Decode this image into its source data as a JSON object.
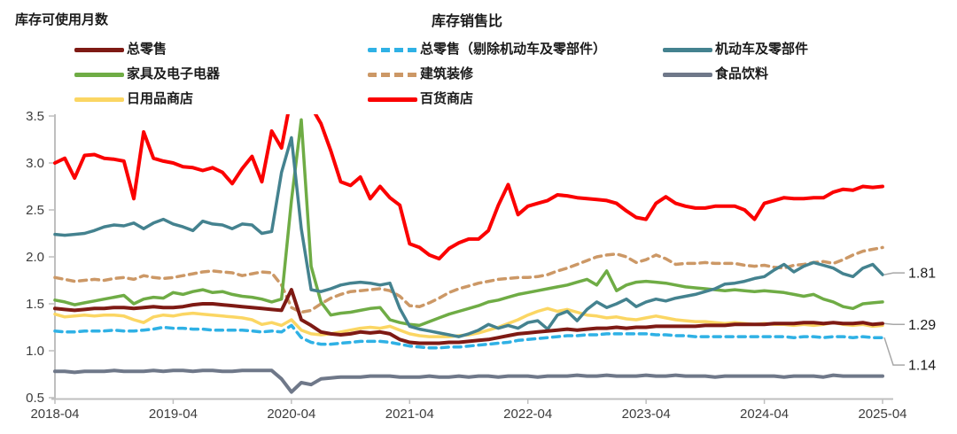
{
  "chart": {
    "unit_note": "库存可使用月数",
    "title": "库存销售比",
    "y_ticks": [
      "3.5",
      "3.0",
      "2.5",
      "2.0",
      "1.5",
      "1.0",
      "0.5"
    ],
    "x_ticks": [
      "2018-04",
      "2019-04",
      "2020-04",
      "2021-04",
      "2022-04",
      "2023-04",
      "2024-04",
      "2025-04"
    ],
    "end_labels": [
      {
        "text": "1.81",
        "series_index": 2,
        "dy": -2
      },
      {
        "text": "1.29",
        "series_index": 0,
        "dy": 1
      },
      {
        "text": "1.14",
        "series_index": 1,
        "dy": 31
      }
    ]
  },
  "chart_data": {
    "type": "line",
    "title": "库存销售比",
    "ylabel": "库存可使用月数",
    "x_start": "2018-04",
    "x_end": "2025-04",
    "frequency": "monthly",
    "ylim": [
      0.5,
      3.5
    ],
    "grid": false,
    "axis_color": "#BFBFBF",
    "tick_label_color": "#3D3D3D",
    "leader_color": "#A8A8A8",
    "end_label_color": "#1a1a1a",
    "draw_order": [
      5,
      1,
      4,
      6,
      3,
      2,
      0,
      7
    ],
    "series": [
      {
        "name": "总零售",
        "color": "#7E1A14",
        "dash": "solid",
        "width": 4,
        "values": [
          1.45,
          1.44,
          1.43,
          1.44,
          1.45,
          1.45,
          1.46,
          1.46,
          1.45,
          1.46,
          1.47,
          1.46,
          1.46,
          1.47,
          1.49,
          1.5,
          1.5,
          1.49,
          1.48,
          1.47,
          1.46,
          1.45,
          1.44,
          1.43,
          1.65,
          1.33,
          1.27,
          1.2,
          1.18,
          1.17,
          1.18,
          1.2,
          1.19,
          1.2,
          1.18,
          1.12,
          1.09,
          1.08,
          1.08,
          1.08,
          1.09,
          1.09,
          1.1,
          1.11,
          1.12,
          1.14,
          1.16,
          1.18,
          1.19,
          1.2,
          1.21,
          1.22,
          1.23,
          1.22,
          1.23,
          1.24,
          1.24,
          1.25,
          1.24,
          1.25,
          1.25,
          1.26,
          1.26,
          1.26,
          1.26,
          1.26,
          1.27,
          1.27,
          1.27,
          1.28,
          1.28,
          1.28,
          1.28,
          1.29,
          1.29,
          1.29,
          1.3,
          1.3,
          1.29,
          1.3,
          1.29,
          1.29,
          1.3,
          1.28,
          1.29
        ]
      },
      {
        "name": "总零售（剔除机动车及零部件）",
        "color": "#2FB1E5",
        "dash": "dashed",
        "width": 3.5,
        "values": [
          1.21,
          1.2,
          1.2,
          1.21,
          1.21,
          1.21,
          1.22,
          1.21,
          1.21,
          1.22,
          1.23,
          1.25,
          1.24,
          1.24,
          1.23,
          1.23,
          1.22,
          1.22,
          1.22,
          1.22,
          1.21,
          1.2,
          1.21,
          1.2,
          1.27,
          1.14,
          1.09,
          1.07,
          1.07,
          1.08,
          1.09,
          1.1,
          1.1,
          1.1,
          1.09,
          1.07,
          1.05,
          1.04,
          1.03,
          1.03,
          1.04,
          1.04,
          1.05,
          1.06,
          1.07,
          1.08,
          1.09,
          1.11,
          1.12,
          1.13,
          1.14,
          1.15,
          1.16,
          1.16,
          1.17,
          1.17,
          1.18,
          1.18,
          1.18,
          1.18,
          1.18,
          1.17,
          1.17,
          1.16,
          1.16,
          1.15,
          1.15,
          1.15,
          1.15,
          1.15,
          1.15,
          1.15,
          1.15,
          1.15,
          1.15,
          1.14,
          1.15,
          1.15,
          1.14,
          1.15,
          1.15,
          1.14,
          1.15,
          1.14,
          1.14
        ]
      },
      {
        "name": "机动车及零部件",
        "color": "#44828F",
        "dash": "solid",
        "width": 3.5,
        "values": [
          2.24,
          2.23,
          2.24,
          2.25,
          2.28,
          2.32,
          2.34,
          2.33,
          2.36,
          2.3,
          2.36,
          2.4,
          2.35,
          2.32,
          2.28,
          2.38,
          2.35,
          2.34,
          2.3,
          2.35,
          2.34,
          2.25,
          2.27,
          2.9,
          3.27,
          2.3,
          1.65,
          1.63,
          1.66,
          1.7,
          1.72,
          1.73,
          1.72,
          1.7,
          1.72,
          1.45,
          1.26,
          1.23,
          1.21,
          1.19,
          1.17,
          1.15,
          1.18,
          1.22,
          1.28,
          1.24,
          1.27,
          1.24,
          1.3,
          1.32,
          1.23,
          1.38,
          1.42,
          1.32,
          1.44,
          1.52,
          1.46,
          1.5,
          1.55,
          1.47,
          1.52,
          1.55,
          1.53,
          1.56,
          1.58,
          1.6,
          1.63,
          1.66,
          1.71,
          1.72,
          1.74,
          1.77,
          1.79,
          1.86,
          1.92,
          1.84,
          1.9,
          1.94,
          1.91,
          1.88,
          1.82,
          1.79,
          1.88,
          1.92,
          1.81
        ]
      },
      {
        "name": "家具及电子电器",
        "color": "#6FAC45",
        "dash": "solid",
        "width": 3.5,
        "values": [
          1.54,
          1.52,
          1.49,
          1.51,
          1.53,
          1.55,
          1.57,
          1.59,
          1.5,
          1.55,
          1.57,
          1.56,
          1.62,
          1.6,
          1.63,
          1.65,
          1.62,
          1.63,
          1.6,
          1.58,
          1.57,
          1.55,
          1.52,
          1.55,
          2.6,
          3.46,
          1.9,
          1.52,
          1.38,
          1.4,
          1.41,
          1.43,
          1.45,
          1.46,
          1.33,
          1.3,
          1.28,
          1.27,
          1.31,
          1.35,
          1.39,
          1.42,
          1.45,
          1.48,
          1.52,
          1.54,
          1.57,
          1.6,
          1.62,
          1.64,
          1.66,
          1.68,
          1.7,
          1.73,
          1.76,
          1.7,
          1.85,
          1.64,
          1.7,
          1.73,
          1.74,
          1.73,
          1.72,
          1.7,
          1.68,
          1.67,
          1.66,
          1.65,
          1.64,
          1.65,
          1.64,
          1.63,
          1.64,
          1.63,
          1.62,
          1.6,
          1.58,
          1.6,
          1.55,
          1.52,
          1.47,
          1.45,
          1.5,
          1.51,
          1.52
        ]
      },
      {
        "name": "建筑装修",
        "color": "#CC9866",
        "dash": "dashed",
        "width": 3.5,
        "values": [
          1.78,
          1.76,
          1.74,
          1.75,
          1.76,
          1.75,
          1.77,
          1.78,
          1.76,
          1.8,
          1.78,
          1.77,
          1.78,
          1.8,
          1.82,
          1.84,
          1.85,
          1.84,
          1.83,
          1.8,
          1.82,
          1.84,
          1.83,
          1.7,
          1.46,
          1.41,
          1.43,
          1.5,
          1.56,
          1.6,
          1.63,
          1.64,
          1.65,
          1.66,
          1.64,
          1.58,
          1.48,
          1.47,
          1.51,
          1.56,
          1.62,
          1.66,
          1.69,
          1.72,
          1.74,
          1.76,
          1.77,
          1.78,
          1.78,
          1.79,
          1.81,
          1.85,
          1.88,
          1.92,
          1.96,
          2.0,
          2.02,
          2.03,
          2.0,
          1.94,
          1.97,
          2.02,
          1.98,
          1.92,
          1.93,
          1.93,
          1.94,
          1.93,
          1.93,
          1.93,
          1.91,
          1.9,
          1.91,
          1.89,
          1.88,
          1.91,
          1.92,
          1.94,
          1.95,
          1.93,
          1.97,
          2.02,
          2.06,
          2.08,
          2.1
        ]
      },
      {
        "name": "食品饮料",
        "color": "#6F7889",
        "dash": "solid",
        "width": 4,
        "values": [
          0.78,
          0.78,
          0.77,
          0.78,
          0.78,
          0.78,
          0.79,
          0.78,
          0.78,
          0.78,
          0.79,
          0.78,
          0.79,
          0.79,
          0.78,
          0.79,
          0.79,
          0.78,
          0.78,
          0.79,
          0.79,
          0.79,
          0.79,
          0.7,
          0.56,
          0.66,
          0.64,
          0.7,
          0.71,
          0.72,
          0.72,
          0.72,
          0.73,
          0.73,
          0.73,
          0.72,
          0.72,
          0.72,
          0.73,
          0.72,
          0.72,
          0.73,
          0.72,
          0.73,
          0.73,
          0.72,
          0.73,
          0.73,
          0.73,
          0.72,
          0.73,
          0.73,
          0.73,
          0.74,
          0.73,
          0.73,
          0.74,
          0.73,
          0.73,
          0.73,
          0.74,
          0.73,
          0.73,
          0.74,
          0.73,
          0.73,
          0.73,
          0.72,
          0.73,
          0.73,
          0.73,
          0.73,
          0.73,
          0.73,
          0.72,
          0.73,
          0.73,
          0.73,
          0.72,
          0.74,
          0.73,
          0.73,
          0.73,
          0.73,
          0.73
        ]
      },
      {
        "name": "日用品商店",
        "color": "#FBD663",
        "dash": "solid",
        "width": 3.5,
        "values": [
          1.39,
          1.36,
          1.37,
          1.38,
          1.37,
          1.38,
          1.38,
          1.37,
          1.33,
          1.3,
          1.36,
          1.38,
          1.37,
          1.39,
          1.4,
          1.39,
          1.38,
          1.37,
          1.36,
          1.35,
          1.33,
          1.28,
          1.3,
          1.27,
          1.33,
          1.22,
          1.18,
          1.17,
          1.18,
          1.2,
          1.22,
          1.24,
          1.25,
          1.24,
          1.26,
          1.22,
          1.18,
          1.16,
          1.15,
          1.15,
          1.15,
          1.16,
          1.17,
          1.19,
          1.22,
          1.25,
          1.29,
          1.33,
          1.38,
          1.42,
          1.45,
          1.42,
          1.44,
          1.41,
          1.38,
          1.37,
          1.35,
          1.36,
          1.34,
          1.33,
          1.35,
          1.37,
          1.35,
          1.33,
          1.32,
          1.31,
          1.31,
          1.3,
          1.29,
          1.3,
          1.29,
          1.28,
          1.29,
          1.28,
          1.28,
          1.27,
          1.28,
          1.27,
          1.28,
          1.3,
          1.28,
          1.27,
          1.28,
          1.26,
          1.27
        ]
      },
      {
        "name": "百货商店",
        "color": "#FB0000",
        "dash": "solid",
        "width": 4,
        "values": [
          3.0,
          3.05,
          2.84,
          3.08,
          3.09,
          3.05,
          3.04,
          3.02,
          2.62,
          3.33,
          3.05,
          3.02,
          3.0,
          2.96,
          2.95,
          2.92,
          2.95,
          2.9,
          2.78,
          2.94,
          3.07,
          2.8,
          3.34,
          3.16,
          3.72,
          3.75,
          3.6,
          3.42,
          3.13,
          2.8,
          2.76,
          2.85,
          2.62,
          2.75,
          2.63,
          2.55,
          2.14,
          2.1,
          2.02,
          1.98,
          2.09,
          2.15,
          2.19,
          2.19,
          2.28,
          2.55,
          2.77,
          2.45,
          2.54,
          2.57,
          2.6,
          2.66,
          2.65,
          2.63,
          2.62,
          2.61,
          2.6,
          2.57,
          2.49,
          2.42,
          2.4,
          2.57,
          2.64,
          2.57,
          2.54,
          2.52,
          2.52,
          2.54,
          2.54,
          2.54,
          2.5,
          2.4,
          2.57,
          2.6,
          2.63,
          2.62,
          2.62,
          2.63,
          2.63,
          2.69,
          2.72,
          2.71,
          2.75,
          2.74,
          2.75
        ]
      }
    ]
  }
}
